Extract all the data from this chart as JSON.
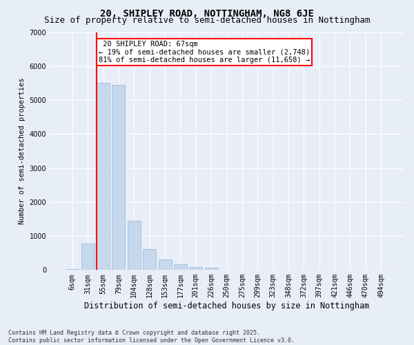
{
  "title": "20, SHIPLEY ROAD, NOTTINGHAM, NG8 6JE",
  "subtitle": "Size of property relative to semi-detached houses in Nottingham",
  "xlabel": "Distribution of semi-detached houses by size in Nottingham",
  "ylabel": "Number of semi-detached properties",
  "categories": [
    "6sqm",
    "31sqm",
    "55sqm",
    "79sqm",
    "104sqm",
    "128sqm",
    "153sqm",
    "177sqm",
    "201sqm",
    "226sqm",
    "250sqm",
    "275sqm",
    "299sqm",
    "323sqm",
    "348sqm",
    "372sqm",
    "397sqm",
    "421sqm",
    "446sqm",
    "470sqm",
    "494sqm"
  ],
  "values": [
    20,
    780,
    5500,
    5450,
    1450,
    620,
    310,
    160,
    90,
    60,
    10,
    5,
    2,
    1,
    0,
    0,
    0,
    0,
    0,
    0,
    0
  ],
  "bar_color": "#c5d8ed",
  "bar_edge_color": "#a0bcd8",
  "vline_color": "red",
  "vline_label": "20 SHIPLEY ROAD: 67sqm",
  "annotation_smaller_pct": "19%",
  "annotation_smaller_n": "2,748",
  "annotation_larger_pct": "81%",
  "annotation_larger_n": "11,658",
  "annotation_box_color": "white",
  "annotation_box_edgecolor": "red",
  "footer_line1": "Contains HM Land Registry data © Crown copyright and database right 2025.",
  "footer_line2": "Contains public sector information licensed under the Open Government Licence v3.0.",
  "background_color": "#e8eef8",
  "grid_color": "#ffffff",
  "ylim": [
    0,
    7000
  ],
  "title_fontsize": 10,
  "subtitle_fontsize": 9,
  "tick_fontsize": 7,
  "ylabel_fontsize": 7.5,
  "xlabel_fontsize": 8.5,
  "annotation_fontsize": 7.5,
  "footer_fontsize": 6
}
